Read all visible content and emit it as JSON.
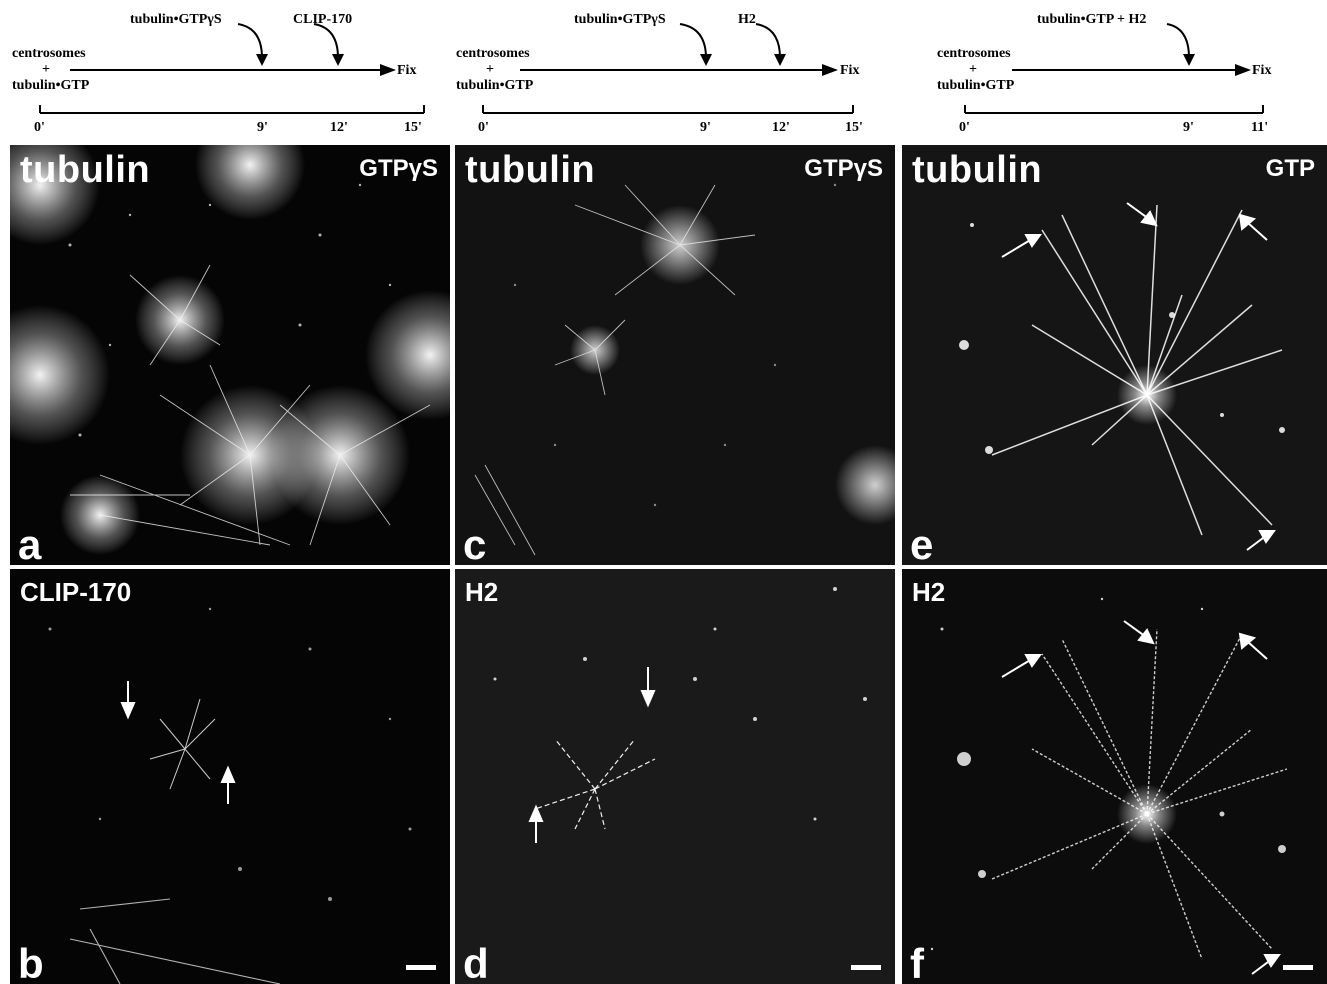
{
  "columns": [
    {
      "schema": {
        "start_label_line1": "centrosomes",
        "start_label_plus": "+",
        "start_label_line2": "tubulin•GTP",
        "addition1": "tubulin•GTPγS",
        "addition2": "CLIP-170",
        "end_label": "Fix",
        "ticks": [
          "0'",
          "9'",
          "12'",
          "15'"
        ]
      },
      "top_panel": {
        "title": "tubulin",
        "corner": "GTPγS",
        "letter": "a"
      },
      "bottom_panel": {
        "title": "CLIP-170",
        "letter": "b"
      }
    },
    {
      "schema": {
        "start_label_line1": "centrosomes",
        "start_label_plus": "+",
        "start_label_line2": "tubulin•GTP",
        "addition1": "tubulin•GTPγS",
        "addition2": "H2",
        "end_label": "Fix",
        "ticks": [
          "0'",
          "9'",
          "12'",
          "15'"
        ]
      },
      "top_panel": {
        "title": "tubulin",
        "corner": "GTPγS",
        "letter": "c"
      },
      "bottom_panel": {
        "title": "H2",
        "letter": "d"
      }
    },
    {
      "schema": {
        "start_label_line1": "centrosomes",
        "start_label_plus": "+",
        "start_label_line2": "tubulin•GTP",
        "addition1": "tubulin•GTP + H2",
        "end_label": "Fix",
        "ticks": [
          "0'",
          "9'",
          "11'"
        ]
      },
      "top_panel": {
        "title": "tubulin",
        "corner": "GTP",
        "letter": "e"
      },
      "bottom_panel": {
        "title": "H2",
        "letter": "f"
      }
    }
  ]
}
